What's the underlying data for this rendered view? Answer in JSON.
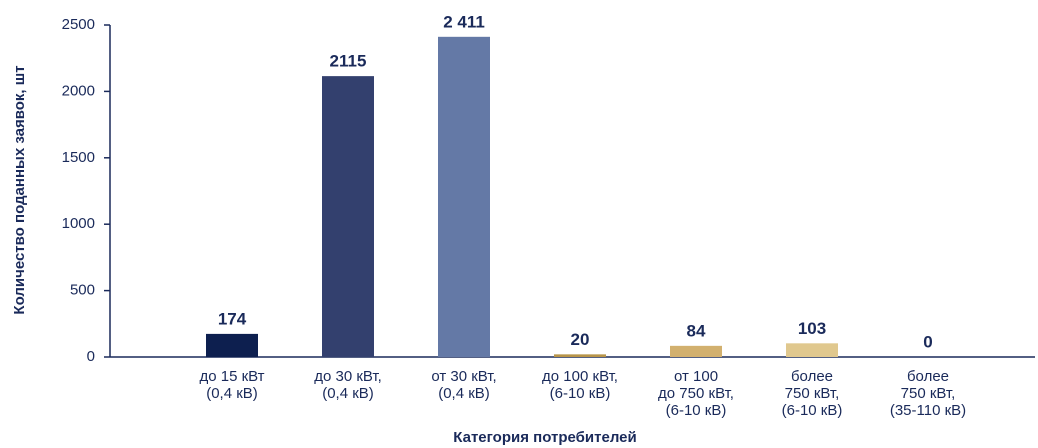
{
  "chart_data": {
    "type": "bar",
    "y_label": "Количество поданных заявок, шт",
    "x_label": "Категория потребителей",
    "categories": [
      [
        "до 15 кВт",
        "(0,4 кВ)"
      ],
      [
        "до 30 кВт,",
        "(0,4 кВ)"
      ],
      [
        "от 30 кВт,",
        "(0,4 кВ)"
      ],
      [
        "до 100 кВт,",
        "(6-10 кВ)"
      ],
      [
        "от 100",
        "до 750 кВт,",
        "(6-10 кВ)"
      ],
      [
        "более",
        "750 кВт,",
        "(6-10 кВ)"
      ],
      [
        "более",
        "750 кВт,",
        "(35-110 кВ)"
      ]
    ],
    "values": [
      174,
      2115,
      2411,
      20,
      84,
      103,
      0
    ],
    "value_labels": [
      "174",
      "2115",
      "2 411",
      "20",
      "84",
      "103",
      "0"
    ],
    "colors": [
      "#0d1f4f",
      "#33406e",
      "#6479a6",
      "#b8954a",
      "#d2b06e",
      "#e0c88e",
      "#e8d8b0"
    ],
    "ylim": [
      0,
      2500
    ],
    "yticks": [
      0,
      500,
      1000,
      1500,
      2000,
      2500
    ]
  }
}
